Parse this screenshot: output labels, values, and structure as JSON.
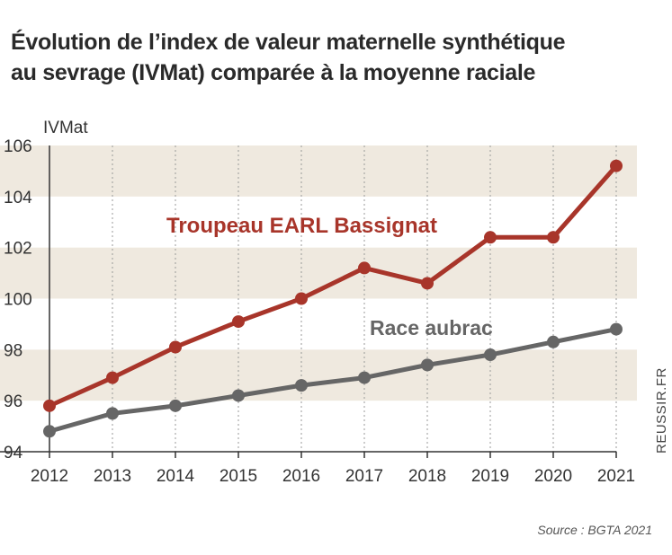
{
  "title_lines": [
    "Évolution de l’index de valeur maternelle synthétique",
    "au sevrage (IVMat) comparée à la moyenne raciale"
  ],
  "credit": "REUSSIR.FR",
  "source": "Source : BGTA 2021",
  "chart_data": {
    "type": "line",
    "ylabel": "IVMat",
    "x": [
      2012,
      2013,
      2014,
      2015,
      2016,
      2017,
      2018,
      2019,
      2020,
      2021
    ],
    "x_tick_labels": [
      "2012",
      "2013",
      "2014",
      "2015",
      "2016",
      "2017",
      "2018",
      "2019",
      "2020",
      "2021"
    ],
    "ylim": [
      94,
      106
    ],
    "y_ticks": [
      94,
      96,
      98,
      100,
      102,
      104,
      106
    ],
    "series": [
      {
        "name": "Troupeau EARL Bassignat",
        "color": "#a8352a",
        "values": [
          95.8,
          96.9,
          98.1,
          99.1,
          100.0,
          101.2,
          100.6,
          102.4,
          102.4,
          105.2
        ]
      },
      {
        "name": "Race aubrac",
        "color": "#666666",
        "values": [
          94.8,
          95.5,
          95.8,
          96.2,
          96.6,
          96.9,
          97.4,
          97.8,
          98.3,
          98.8
        ]
      }
    ],
    "grid": "alternating horizontal bands, dotted vertical lines"
  }
}
